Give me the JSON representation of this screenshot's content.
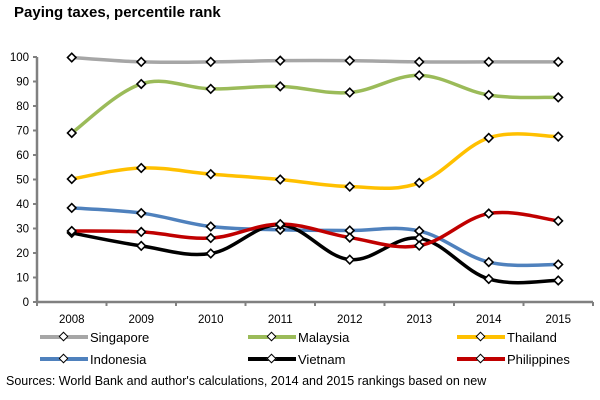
{
  "chart_data": {
    "type": "line",
    "title": "Paying taxes, percentile rank",
    "xlabel": "",
    "ylabel": "",
    "x": [
      "2008",
      "2009",
      "2010",
      "2011",
      "2012",
      "2013",
      "2014",
      "2015"
    ],
    "ylim": [
      0,
      100
    ],
    "yticks": [
      "0",
      "10",
      "20",
      "30",
      "40",
      "50",
      "60",
      "70",
      "80",
      "90",
      "100"
    ],
    "grid": false,
    "legend_position": "bottom",
    "series": [
      {
        "name": "Singapore",
        "color": "#a6a6a6",
        "values": [
          99.8,
          98.0,
          98.0,
          98.5,
          98.5,
          98.0,
          98.0,
          98.0
        ]
      },
      {
        "name": "Malaysia",
        "color": "#9bbb59",
        "values": [
          69.0,
          89.0,
          87.0,
          88.0,
          85.5,
          92.5,
          84.5,
          83.5
        ]
      },
      {
        "name": "Thailand",
        "color": "#ffc000",
        "values": [
          50.2,
          54.7,
          52.2,
          50.0,
          47.1,
          48.6,
          67.0,
          67.5
        ]
      },
      {
        "name": "Indonesia",
        "color": "#4f81bd",
        "values": [
          38.4,
          36.3,
          30.8,
          29.5,
          29.2,
          29.0,
          16.3,
          15.3
        ]
      },
      {
        "name": "Vietnam",
        "color": "#000000",
        "values": [
          28.2,
          22.9,
          19.8,
          31.5,
          17.3,
          26.0,
          9.4,
          8.8
        ]
      },
      {
        "name": "Philippines",
        "color": "#c00000",
        "values": [
          29.0,
          28.6,
          26.1,
          31.8,
          26.3,
          23.0,
          36.1,
          33.1
        ]
      }
    ]
  },
  "source_note": "Sources: World Bank and author's calculations, 2014 and 2015 rankings based on new"
}
